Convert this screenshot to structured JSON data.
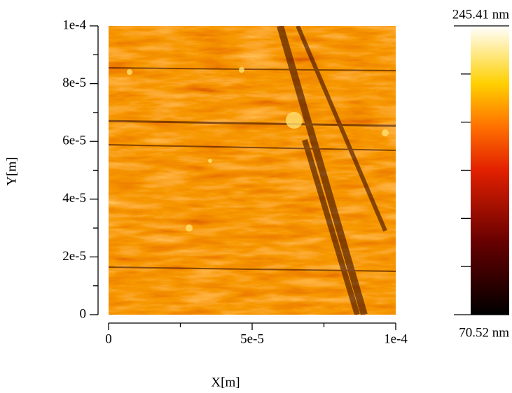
{
  "chart_data": {
    "type": "heatmap",
    "x_label": "X[m]",
    "y_label": "Y[m]",
    "xlim": [
      0,
      0.0001
    ],
    "ylim": [
      0,
      0.0001
    ],
    "xticks": [
      0,
      {
        "value": 5e-05,
        "label": "5e-5"
      },
      {
        "value": 0.0001,
        "label": "1e-4"
      }
    ],
    "yticks": [
      0,
      {
        "value": 2e-05,
        "label": "2e-5"
      },
      {
        "value": 4e-05,
        "label": "4e-5"
      },
      {
        "value": 6e-05,
        "label": "6e-5"
      },
      {
        "value": 8e-05,
        "label": "8e-5"
      },
      {
        "value": 0.0001,
        "label": "1e-4"
      }
    ],
    "colorbar": {
      "min": {
        "value": 70.52,
        "label": "70.52 nm"
      },
      "max": {
        "value": 245.41,
        "label": "245.41 nm"
      }
    }
  }
}
